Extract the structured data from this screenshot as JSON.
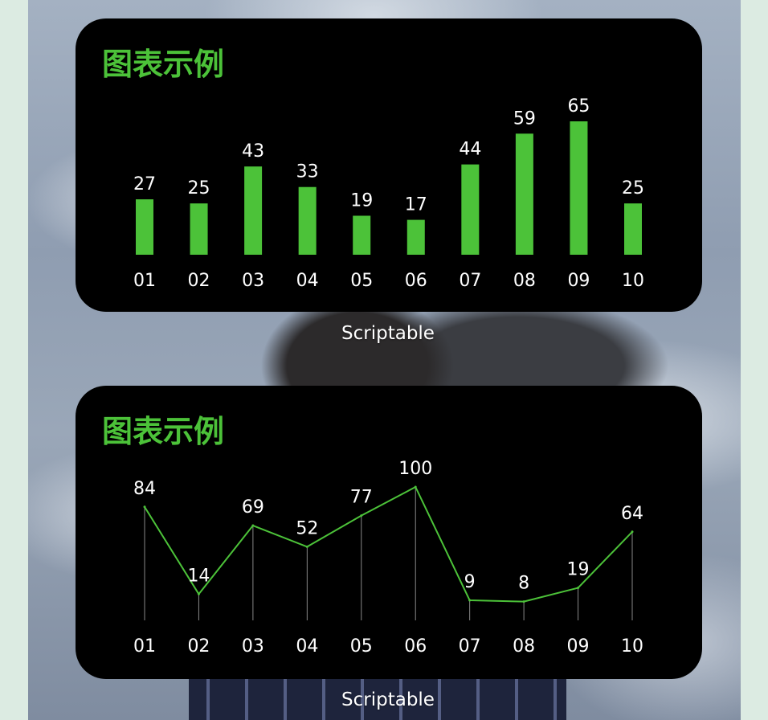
{
  "widgets": [
    {
      "title": "图表示例",
      "app_label": "Scriptable"
    },
    {
      "title": "图表示例",
      "app_label": "Scriptable"
    }
  ],
  "colors": {
    "accent": "#4cc239",
    "widget_bg": "#000000",
    "text": "#ffffff",
    "grid": "#888888"
  },
  "chart_data": [
    {
      "type": "bar",
      "categories": [
        "01",
        "02",
        "03",
        "04",
        "05",
        "06",
        "07",
        "08",
        "09",
        "10"
      ],
      "values": [
        27,
        25,
        43,
        33,
        19,
        17,
        44,
        59,
        65,
        25
      ],
      "title": "图表示例",
      "xlabel": "",
      "ylabel": "",
      "ylim": [
        0,
        65
      ],
      "grid": false
    },
    {
      "type": "line",
      "categories": [
        "01",
        "02",
        "03",
        "04",
        "05",
        "06",
        "07",
        "08",
        "09",
        "10"
      ],
      "values": [
        84,
        14,
        69,
        52,
        77,
        100,
        9,
        8,
        19,
        64
      ],
      "title": "图表示例",
      "xlabel": "",
      "ylabel": "",
      "ylim": [
        0,
        100
      ],
      "grid": true
    }
  ]
}
